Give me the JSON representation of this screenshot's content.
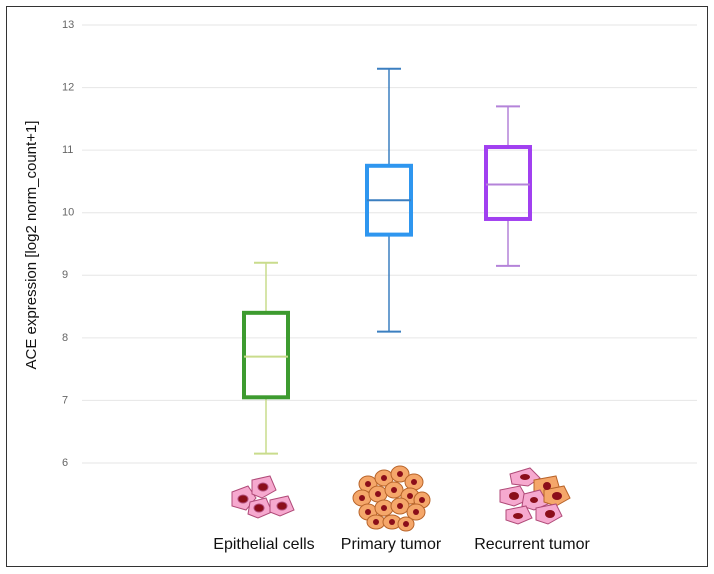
{
  "chart_data": {
    "type": "box",
    "y_label": "ACE expression [log2 norm_count+1]",
    "categories": [
      "Epithelial cells",
      "Primary tumor",
      "Recurrent tumor"
    ],
    "boxes": [
      {
        "min": 6.15,
        "q1": 7.05,
        "median": 7.7,
        "q3": 8.4,
        "max": 9.2,
        "color": "#3d9b2f",
        "whisker_color": "#c9dc8c"
      },
      {
        "min": 8.1,
        "q1": 9.65,
        "median": 10.2,
        "q3": 10.75,
        "max": 12.3,
        "color": "#2e96ef",
        "whisker_color": "#3b7fc0"
      },
      {
        "min": 9.15,
        "q1": 9.9,
        "median": 10.45,
        "q3": 11.05,
        "max": 11.7,
        "color": "#a140f0",
        "whisker_color": "#b483d9"
      }
    ],
    "ylim": [
      6,
      13
    ],
    "yticks": [
      6,
      7,
      8,
      9,
      10,
      11,
      12,
      13
    ],
    "grid": true
  }
}
